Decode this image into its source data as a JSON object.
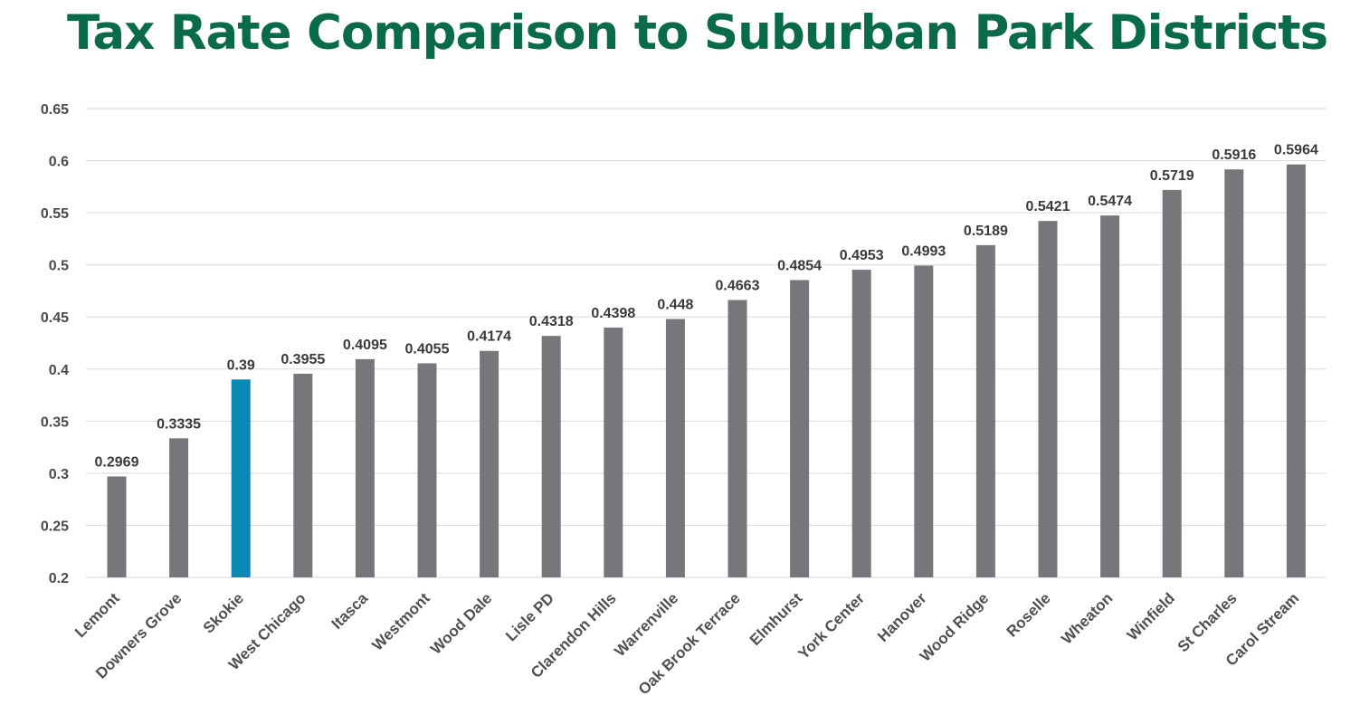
{
  "page": {
    "title": "Tax Rate Comparison to Suburban Park Districts"
  },
  "colors": {
    "title": "#0a6b4a",
    "bar_default": "#77777b",
    "bar_highlight": "#0a88b7",
    "grid": "#d9d9d9"
  },
  "chart_data": {
    "type": "bar",
    "title": "Tax Rate Comparison to Suburban Park Districts",
    "xlabel": "",
    "ylabel": "",
    "ylim": [
      0.2,
      0.65
    ],
    "yticks": [
      "0.2",
      "0.25",
      "0.3",
      "0.35",
      "0.4",
      "0.45",
      "0.5",
      "0.55",
      "0.6",
      "0.65"
    ],
    "grid": true,
    "legend": "none",
    "highlight_category": "Skokie",
    "categories": [
      "Lemont",
      "Downers Grove",
      "Skokie",
      "West Chicago",
      "Itasca",
      "Westmont",
      "Wood Dale",
      "Lisle PD",
      "Clarendon Hills",
      "Warrenville",
      "Oak Brook Terrace",
      "Elmhurst",
      "York Center",
      "Hanover",
      "Wood Ridge",
      "Roselle",
      "Wheaton",
      "Winfield",
      "St Charles",
      "Carol Stream"
    ],
    "values": [
      0.2969,
      0.3335,
      0.39,
      0.3955,
      0.4095,
      0.4055,
      0.4174,
      0.4318,
      0.4398,
      0.448,
      0.4663,
      0.4854,
      0.4953,
      0.4993,
      0.5189,
      0.5421,
      0.5474,
      0.5719,
      0.5916,
      0.5964
    ],
    "data_labels": [
      "0.2969",
      "0.3335",
      "0.39",
      "0.3955",
      "0.4095",
      "0.4055",
      "0.4174",
      "0.4318",
      "0.4398",
      "0.448",
      "0.4663",
      "0.4854",
      "0.4953",
      "0.4993",
      "0.5189",
      "0.5421",
      "0.5474",
      "0.5719",
      "0.5916",
      "0.5964"
    ]
  }
}
